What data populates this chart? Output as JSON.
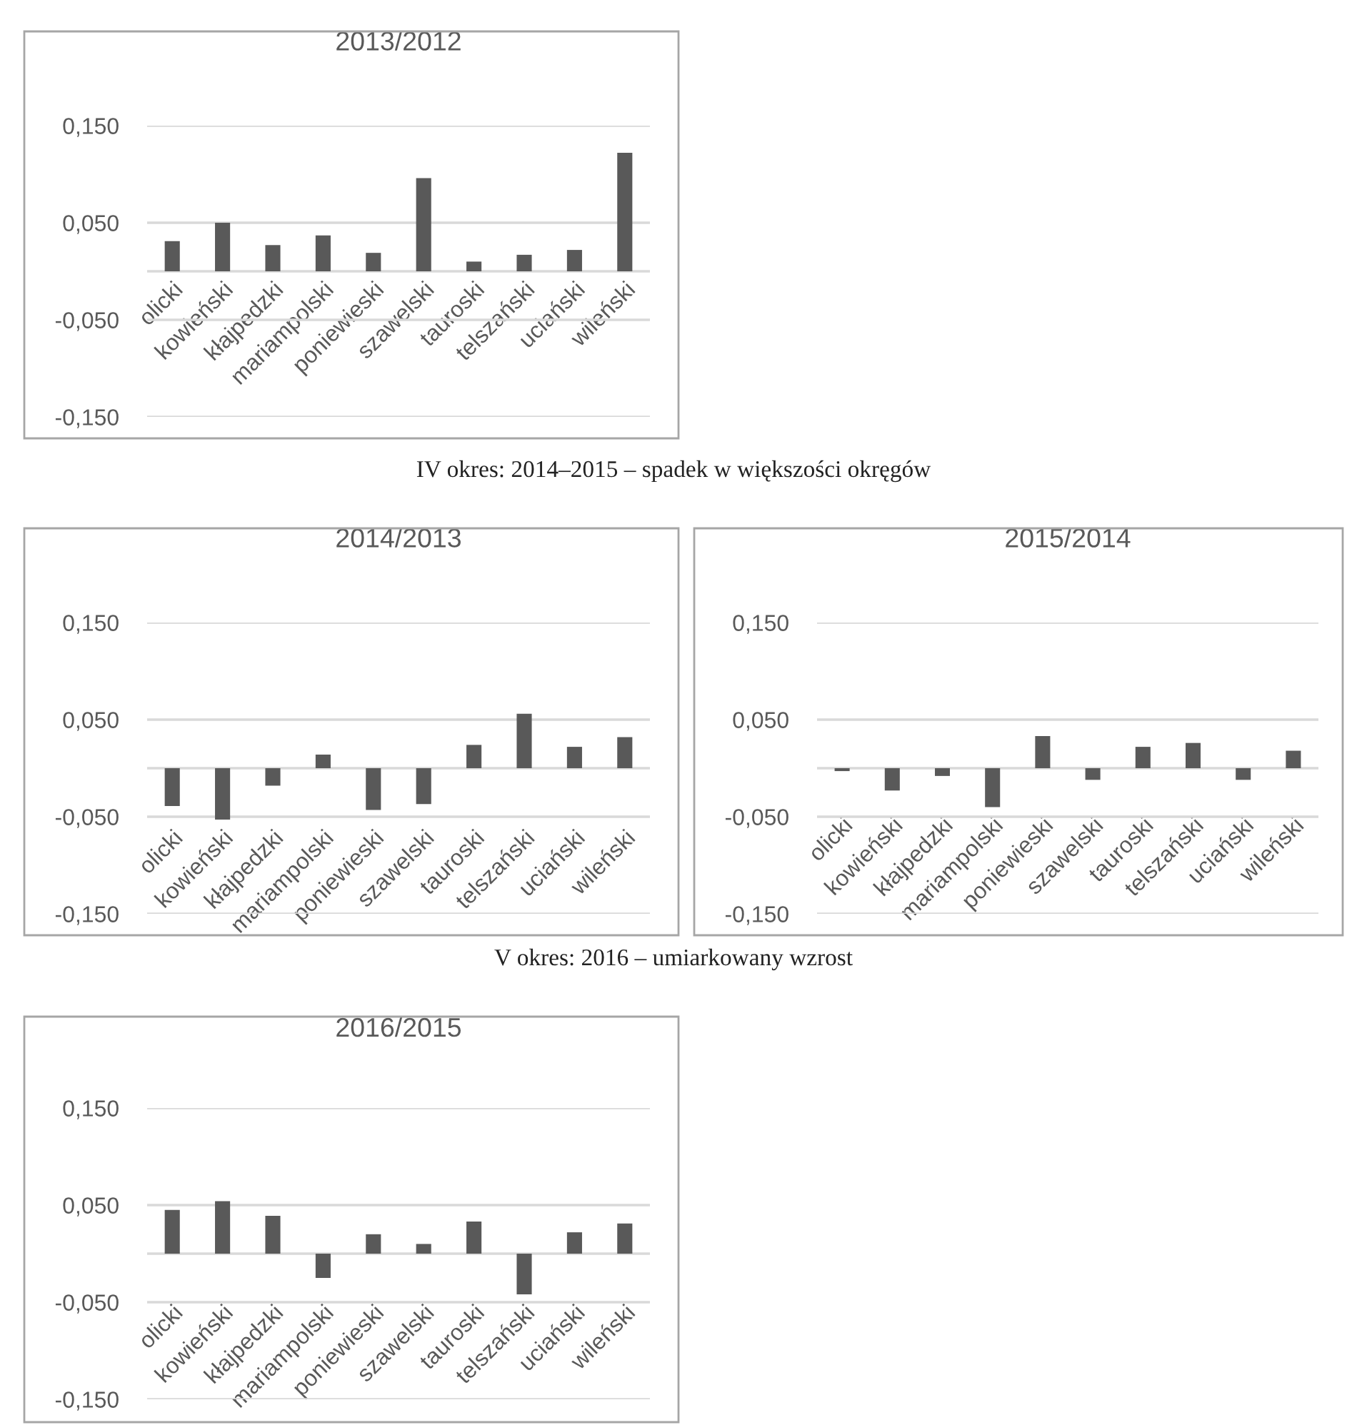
{
  "chart_data": [
    {
      "type": "bar",
      "title": "2013/2012",
      "categories": [
        "olicki",
        "kowieński",
        "kłajpedzki",
        "mariampolski",
        "poniewieski",
        "szawelski",
        "tauroski",
        "telszański",
        "uciański",
        "wileński"
      ],
      "values": [
        0.031,
        0.05,
        0.027,
        0.037,
        0.019,
        0.096,
        0.01,
        0.017,
        0.022,
        0.122
      ],
      "color": "#595959",
      "ylim": [
        -0.15,
        0.15
      ],
      "yticks": [
        {
          "value": -0.15,
          "label": "-0,150"
        },
        {
          "value": -0.05,
          "label": "-0,050"
        },
        {
          "value": 0.05,
          "label": "0,050"
        },
        {
          "value": 0.15,
          "label": "0,150"
        }
      ],
      "grid": "y"
    },
    {
      "type": "bar",
      "title": "2014/2013",
      "annotations": [
        "IV okres: 2014–2015 – spadek w większości okręgów"
      ],
      "categories": [
        "olicki",
        "kowieński",
        "kłajpedzki",
        "mariampolski",
        "poniewieski",
        "szawelski",
        "tauroski",
        "telszański",
        "uciański",
        "wileński"
      ],
      "values": [
        -0.039,
        -0.053,
        -0.018,
        0.014,
        -0.043,
        -0.037,
        0.024,
        0.056,
        0.022,
        0.032
      ],
      "color": "#595959",
      "ylim": [
        -0.15,
        0.15
      ],
      "yticks": [
        {
          "value": -0.15,
          "label": "-0,150"
        },
        {
          "value": -0.05,
          "label": "-0,050"
        },
        {
          "value": 0.05,
          "label": "0,050"
        },
        {
          "value": 0.15,
          "label": "0,150"
        }
      ],
      "grid": "y"
    },
    {
      "type": "bar",
      "title": "2015/2014",
      "categories": [
        "olicki",
        "kowieński",
        "kłajpedzki",
        "mariampolski",
        "poniewieski",
        "szawelski",
        "tauroski",
        "telszański",
        "uciański",
        "wileński"
      ],
      "values": [
        -0.003,
        -0.023,
        -0.008,
        -0.04,
        0.033,
        -0.012,
        0.022,
        0.026,
        -0.012,
        0.018
      ],
      "color": "#595959",
      "ylim": [
        -0.15,
        0.15
      ],
      "yticks": [
        {
          "value": -0.15,
          "label": "-0,150"
        },
        {
          "value": -0.05,
          "label": "-0,050"
        },
        {
          "value": 0.05,
          "label": "0,050"
        },
        {
          "value": 0.15,
          "label": "0,150"
        }
      ],
      "grid": "y"
    },
    {
      "type": "bar",
      "title": "2016/2015",
      "annotations": [
        "V okres: 2016 – umiarkowany wzrost"
      ],
      "categories": [
        "olicki",
        "kowieński",
        "kłajpedzki",
        "mariampolski",
        "poniewieski",
        "szawelski",
        "tauroski",
        "telszański",
        "uciański",
        "wileński"
      ],
      "values": [
        0.045,
        0.054,
        0.039,
        -0.025,
        0.02,
        0.01,
        0.033,
        -0.042,
        0.022,
        0.031
      ],
      "color": "#595959",
      "ylim": [
        -0.15,
        0.15
      ],
      "yticks": [
        {
          "value": -0.15,
          "label": "-0,150"
        },
        {
          "value": -0.05,
          "label": "-0,050"
        },
        {
          "value": 0.05,
          "label": "0,050"
        },
        {
          "value": 0.15,
          "label": "0,150"
        }
      ],
      "grid": "y"
    }
  ]
}
